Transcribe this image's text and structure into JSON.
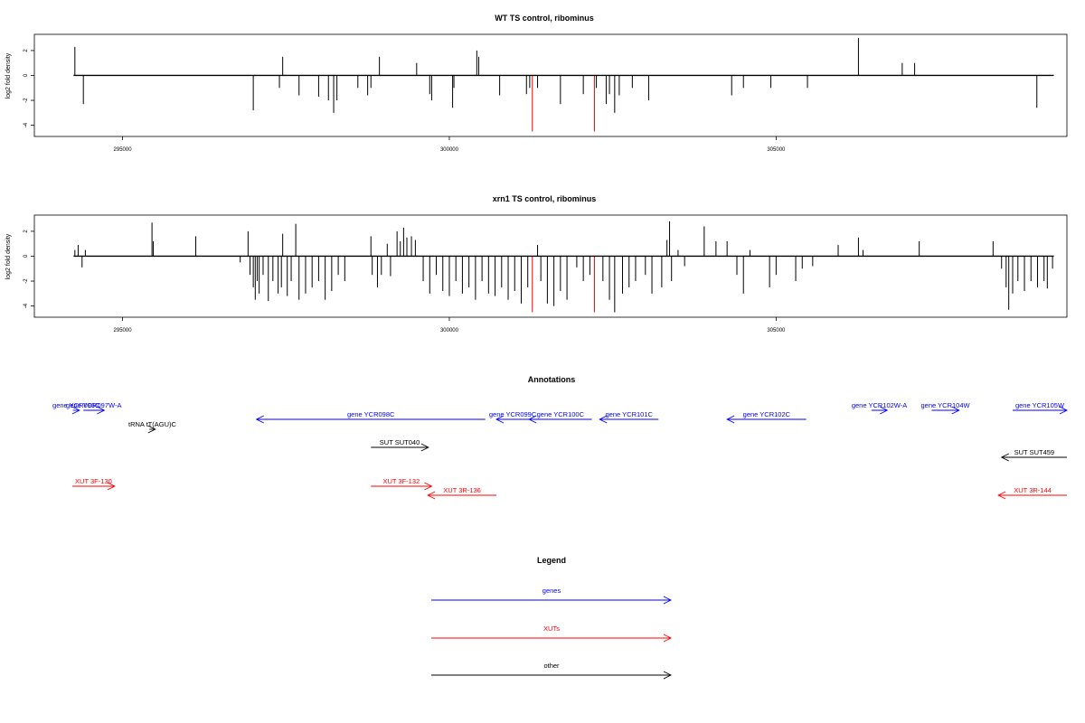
{
  "chart_data": [
    {
      "type": "bar",
      "title": "WT TS control, ribominus",
      "ylabel": "log2 fold density",
      "xlim": [
        293650,
        309450
      ],
      "ylim": [
        -4.9,
        3.3
      ],
      "x_ticks": [
        295000,
        300000,
        305000
      ],
      "y_ticks": [
        2,
        0,
        -2,
        -4
      ],
      "baseline": {
        "x": [
          294250,
          309250
        ],
        "y": 0
      },
      "series": [
        {
          "color": "#000000",
          "points": [
            {
              "x": 294270,
              "y": 2.3
            },
            {
              "x": 294400,
              "y": -2.3
            },
            {
              "x": 297000,
              "y": -2.8
            },
            {
              "x": 297400,
              "y": -1.0
            },
            {
              "x": 297450,
              "y": 1.5
            },
            {
              "x": 297700,
              "y": -1.6
            },
            {
              "x": 298000,
              "y": -1.7
            },
            {
              "x": 298150,
              "y": -2.0
            },
            {
              "x": 298230,
              "y": -3.0
            },
            {
              "x": 298280,
              "y": -2.0
            },
            {
              "x": 298600,
              "y": -1.0
            },
            {
              "x": 298750,
              "y": -1.6
            },
            {
              "x": 298800,
              "y": -1.0
            },
            {
              "x": 298930,
              "y": 1.5
            },
            {
              "x": 299500,
              "y": 1.0
            },
            {
              "x": 299700,
              "y": -1.5
            },
            {
              "x": 299730,
              "y": -2.0
            },
            {
              "x": 300050,
              "y": -2.6
            },
            {
              "x": 300070,
              "y": -1.0
            },
            {
              "x": 300420,
              "y": 2.0
            },
            {
              "x": 300450,
              "y": 1.5
            },
            {
              "x": 300770,
              "y": -1.6
            },
            {
              "x": 301180,
              "y": -1.5
            },
            {
              "x": 301230,
              "y": -1.0
            },
            {
              "x": 301350,
              "y": -1.0
            },
            {
              "x": 301700,
              "y": -2.3
            },
            {
              "x": 302050,
              "y": -1.5
            },
            {
              "x": 302250,
              "y": -1.0
            },
            {
              "x": 302400,
              "y": -2.3
            },
            {
              "x": 302450,
              "y": -1.5
            },
            {
              "x": 302530,
              "y": -3.0
            },
            {
              "x": 302600,
              "y": -1.6
            },
            {
              "x": 302800,
              "y": -1.0
            },
            {
              "x": 303050,
              "y": -2.0
            },
            {
              "x": 304320,
              "y": -1.6
            },
            {
              "x": 304500,
              "y": -1.0
            },
            {
              "x": 304920,
              "y": -1.0
            },
            {
              "x": 305480,
              "y": -1.0
            },
            {
              "x": 306260,
              "y": 3.0
            },
            {
              "x": 306930,
              "y": 1.0
            },
            {
              "x": 307120,
              "y": 1.0
            },
            {
              "x": 308990,
              "y": -2.6
            }
          ]
        },
        {
          "color": "#ff0000",
          "points": [
            {
              "x": 301270,
              "y": -4.5
            },
            {
              "x": 302220,
              "y": -4.5
            }
          ]
        }
      ]
    },
    {
      "type": "bar",
      "title": "xrn1 TS control, ribominus",
      "ylabel": "log2 fold density",
      "xlim": [
        293650,
        309450
      ],
      "ylim": [
        -4.9,
        3.3
      ],
      "x_ticks": [
        295000,
        300000,
        305000
      ],
      "y_ticks": [
        2,
        0,
        -2,
        -4
      ],
      "baseline": {
        "x": [
          294250,
          309250
        ],
        "y": 0
      },
      "series": [
        {
          "color": "#000000",
          "points": [
            {
              "x": 294270,
              "y": 0.5
            },
            {
              "x": 294320,
              "y": 0.9
            },
            {
              "x": 294380,
              "y": -0.9
            },
            {
              "x": 294430,
              "y": 0.5
            },
            {
              "x": 295450,
              "y": 2.7
            },
            {
              "x": 295470,
              "y": 1.2
            },
            {
              "x": 296120,
              "y": 1.6
            },
            {
              "x": 296800,
              "y": -0.5
            },
            {
              "x": 296920,
              "y": 2.0
            },
            {
              "x": 296950,
              "y": -1.5
            },
            {
              "x": 297000,
              "y": -2.5
            },
            {
              "x": 297030,
              "y": -3.5
            },
            {
              "x": 297060,
              "y": -2.0
            },
            {
              "x": 297090,
              "y": -3.0
            },
            {
              "x": 297150,
              "y": -1.5
            },
            {
              "x": 297230,
              "y": -3.6
            },
            {
              "x": 297300,
              "y": -2.0
            },
            {
              "x": 297380,
              "y": -3.0
            },
            {
              "x": 297430,
              "y": -2.5
            },
            {
              "x": 297450,
              "y": 1.8
            },
            {
              "x": 297520,
              "y": -3.2
            },
            {
              "x": 297580,
              "y": -2.0
            },
            {
              "x": 297650,
              "y": 2.6
            },
            {
              "x": 297700,
              "y": -3.5
            },
            {
              "x": 297800,
              "y": -3.0
            },
            {
              "x": 297900,
              "y": -2.5
            },
            {
              "x": 298000,
              "y": -2.0
            },
            {
              "x": 298100,
              "y": -3.5
            },
            {
              "x": 298200,
              "y": -2.8
            },
            {
              "x": 298300,
              "y": -1.5
            },
            {
              "x": 298400,
              "y": -2.0
            },
            {
              "x": 298800,
              "y": 1.6
            },
            {
              "x": 298820,
              "y": -1.5
            },
            {
              "x": 298900,
              "y": -2.5
            },
            {
              "x": 298960,
              "y": -1.5
            },
            {
              "x": 299050,
              "y": 1.0
            },
            {
              "x": 299100,
              "y": -1.6
            },
            {
              "x": 299200,
              "y": 2.0
            },
            {
              "x": 299250,
              "y": 1.2
            },
            {
              "x": 299300,
              "y": 2.3
            },
            {
              "x": 299350,
              "y": 1.5
            },
            {
              "x": 299420,
              "y": 1.6
            },
            {
              "x": 299480,
              "y": 1.3
            },
            {
              "x": 299600,
              "y": -2.0
            },
            {
              "x": 299700,
              "y": -3.0
            },
            {
              "x": 299800,
              "y": -1.5
            },
            {
              "x": 299900,
              "y": -2.8
            },
            {
              "x": 300000,
              "y": -3.2
            },
            {
              "x": 300100,
              "y": -2.0
            },
            {
              "x": 300200,
              "y": -3.0
            },
            {
              "x": 300300,
              "y": -2.5
            },
            {
              "x": 300400,
              "y": -3.5
            },
            {
              "x": 300500,
              "y": -2.0
            },
            {
              "x": 300600,
              "y": -3.0
            },
            {
              "x": 300700,
              "y": -3.2
            },
            {
              "x": 300800,
              "y": -2.5
            },
            {
              "x": 300900,
              "y": -3.5
            },
            {
              "x": 301000,
              "y": -2.8
            },
            {
              "x": 301100,
              "y": -3.8
            },
            {
              "x": 301200,
              "y": -2.5
            },
            {
              "x": 301350,
              "y": 0.9
            },
            {
              "x": 301400,
              "y": -2.0
            },
            {
              "x": 301500,
              "y": -3.8
            },
            {
              "x": 301600,
              "y": -4.0
            },
            {
              "x": 301700,
              "y": -2.8
            },
            {
              "x": 301800,
              "y": -3.5
            },
            {
              "x": 301950,
              "y": -0.9
            },
            {
              "x": 302050,
              "y": -2.0
            },
            {
              "x": 302150,
              "y": -1.5
            },
            {
              "x": 302350,
              "y": -2.0
            },
            {
              "x": 302450,
              "y": -3.5
            },
            {
              "x": 302530,
              "y": -4.5
            },
            {
              "x": 302650,
              "y": -3.0
            },
            {
              "x": 302750,
              "y": -2.5
            },
            {
              "x": 302850,
              "y": -2.0
            },
            {
              "x": 303000,
              "y": -1.5
            },
            {
              "x": 303100,
              "y": -3.0
            },
            {
              "x": 303250,
              "y": -2.5
            },
            {
              "x": 303330,
              "y": 1.3
            },
            {
              "x": 303370,
              "y": 2.8
            },
            {
              "x": 303400,
              "y": -2.0
            },
            {
              "x": 303500,
              "y": 0.5
            },
            {
              "x": 303600,
              "y": -0.8
            },
            {
              "x": 303900,
              "y": 2.4
            },
            {
              "x": 304080,
              "y": 1.2
            },
            {
              "x": 304250,
              "y": 1.2
            },
            {
              "x": 304400,
              "y": -1.5
            },
            {
              "x": 304500,
              "y": -3.0
            },
            {
              "x": 304600,
              "y": 0.5
            },
            {
              "x": 304900,
              "y": -2.5
            },
            {
              "x": 305000,
              "y": -1.5
            },
            {
              "x": 305300,
              "y": -2.0
            },
            {
              "x": 305400,
              "y": -1.0
            },
            {
              "x": 305560,
              "y": -0.8
            },
            {
              "x": 305950,
              "y": 0.9
            },
            {
              "x": 306260,
              "y": 1.5
            },
            {
              "x": 306330,
              "y": 0.5
            },
            {
              "x": 307190,
              "y": 1.2
            },
            {
              "x": 308320,
              "y": 1.2
            },
            {
              "x": 308450,
              "y": -1.0
            },
            {
              "x": 308520,
              "y": -2.5
            },
            {
              "x": 308560,
              "y": -4.3
            },
            {
              "x": 308620,
              "y": -3.0
            },
            {
              "x": 308700,
              "y": -2.0
            },
            {
              "x": 308800,
              "y": -2.8
            },
            {
              "x": 308900,
              "y": -2.0
            },
            {
              "x": 309000,
              "y": -2.5
            },
            {
              "x": 309100,
              "y": -2.0
            },
            {
              "x": 309150,
              "y": -2.6
            },
            {
              "x": 309230,
              "y": -1.0
            }
          ]
        },
        {
          "color": "#ff0000",
          "points": [
            {
              "x": 301270,
              "y": -4.5
            },
            {
              "x": 302220,
              "y": -4.5
            }
          ]
        }
      ]
    }
  ],
  "annotations": {
    "title": "Annotations",
    "features": [
      {
        "label": "gene YCR096C",
        "color": "#0000ff",
        "type": "genes",
        "start": 294240,
        "end": 294340,
        "dir": "+",
        "row": 0
      },
      {
        "label": "gene YCR097W-A",
        "color": "#0000ff",
        "type": "genes",
        "start": 294400,
        "end": 294720,
        "dir": "+",
        "row": 0
      },
      {
        "label": "tRNA tT(AGU)C",
        "color": "#000000",
        "type": "other",
        "start": 295410,
        "end": 295500,
        "dir": "+",
        "row": 1
      },
      {
        "label": "gene YCR098C",
        "color": "#0000ff",
        "type": "genes",
        "start": 297050,
        "end": 300550,
        "dir": "-",
        "row": 2
      },
      {
        "label": "gene YCR099C",
        "color": "#0000ff",
        "type": "genes",
        "start": 300720,
        "end": 301220,
        "dir": "-",
        "row": 2
      },
      {
        "label": "gene YCR100C",
        "color": "#0000ff",
        "type": "genes",
        "start": 301220,
        "end": 302180,
        "dir": "-",
        "row": 2
      },
      {
        "label": "gene YCR101C",
        "color": "#0000ff",
        "type": "genes",
        "start": 302300,
        "end": 303200,
        "dir": "-",
        "row": 2
      },
      {
        "label": "gene YCR102C",
        "color": "#0000ff",
        "type": "genes",
        "start": 304250,
        "end": 305460,
        "dir": "-",
        "row": 2
      },
      {
        "label": "gene YCR102W-A",
        "color": "#0000ff",
        "type": "genes",
        "start": 306460,
        "end": 306700,
        "dir": "+",
        "row": 0
      },
      {
        "label": "gene YCR104W",
        "color": "#0000ff",
        "type": "genes",
        "start": 307380,
        "end": 307800,
        "dir": "+",
        "row": 0
      },
      {
        "label": "gene YCR105W",
        "color": "#0000ff",
        "type": "genes",
        "start": 308620,
        "end": 309450,
        "dir": "+",
        "row": 0
      },
      {
        "label": "SUT SUT040",
        "color": "#000000",
        "type": "other",
        "start": 298800,
        "end": 299680,
        "dir": "+",
        "row": 3
      },
      {
        "label": "SUT SUT459",
        "color": "#000000",
        "type": "other",
        "start": 308450,
        "end": 309450,
        "dir": "-",
        "row": 4
      },
      {
        "label": "XUT 3F-130",
        "color": "#ff0000",
        "type": "XUTs",
        "start": 294230,
        "end": 294880,
        "dir": "+",
        "row": 5
      },
      {
        "label": "XUT 3F-132",
        "color": "#ff0000",
        "type": "XUTs",
        "start": 298800,
        "end": 299730,
        "dir": "+",
        "row": 5
      },
      {
        "label": "XUT 3R-136",
        "color": "#ff0000",
        "type": "XUTs",
        "start": 299670,
        "end": 300720,
        "dir": "-",
        "row": 6
      },
      {
        "label": "XUT 3R-144",
        "color": "#ff0000",
        "type": "XUTs",
        "start": 308400,
        "end": 309450,
        "dir": "-",
        "row": 6
      }
    ]
  },
  "legend": {
    "title": "Legend",
    "entries": [
      {
        "label": "genes",
        "color": "#0000ff"
      },
      {
        "label": "XUTs",
        "color": "#ff0000"
      },
      {
        "label": "other",
        "color": "#000000"
      }
    ]
  }
}
